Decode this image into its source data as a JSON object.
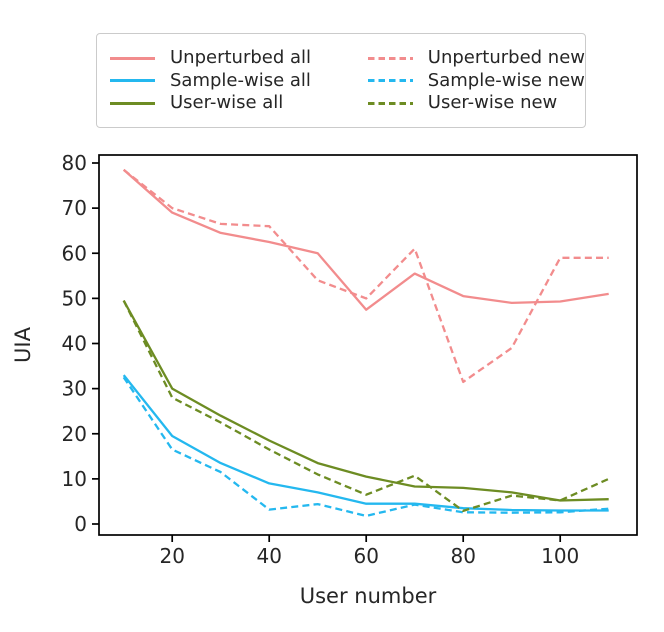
{
  "figure": {
    "background": "#ffffff",
    "text_color": "#262626"
  },
  "chart_data": {
    "type": "line",
    "title": "",
    "xlabel": "User number",
    "ylabel": "UIA",
    "x": [
      10,
      20,
      30,
      40,
      50,
      60,
      70,
      80,
      90,
      100,
      110
    ],
    "x_ticks": [
      20,
      40,
      60,
      80,
      100
    ],
    "y_ticks": [
      0,
      10,
      20,
      30,
      40,
      50,
      60,
      70,
      80
    ],
    "xlim": [
      4.9,
      115.8
    ],
    "ylim": [
      -2.4,
      81.8
    ],
    "grid": false,
    "legend_position": "top, outside plot, 2 columns",
    "series": [
      {
        "label": "Unperturbed all",
        "color": "#f28c8d",
        "style": "solid",
        "values": [
          78.5,
          69,
          64.5,
          62.5,
          60,
          47.5,
          55.5,
          50.5,
          49,
          49.3,
          51
        ]
      },
      {
        "label": "Sample-wise all",
        "color": "#24b8ef",
        "style": "solid",
        "values": [
          33,
          19.5,
          13.5,
          9,
          7,
          4.5,
          4.5,
          3.5,
          3.1,
          3,
          3
        ]
      },
      {
        "label": "User-wise all",
        "color": "#6d8c23",
        "style": "solid",
        "values": [
          49.5,
          30,
          24,
          18.5,
          13.5,
          10.5,
          8.3,
          8,
          7,
          5.2,
          5.5
        ]
      },
      {
        "label": "Unperturbed new",
        "color": "#f28c8d",
        "style": "dashed",
        "values": [
          78.5,
          70,
          66.5,
          66,
          54,
          50,
          61,
          31.5,
          39,
          59,
          59
        ]
      },
      {
        "label": "Sample-wise new",
        "color": "#24b8ef",
        "style": "dashed",
        "values": [
          32.5,
          16.5,
          11.5,
          3.2,
          4.4,
          1.8,
          4.3,
          2.6,
          2.5,
          2.6,
          3.4
        ]
      },
      {
        "label": "User-wise new",
        "color": "#6d8c23",
        "style": "dashed",
        "values": [
          49.5,
          28,
          22.5,
          16.5,
          11,
          6.5,
          10.7,
          2.9,
          6.3,
          5.2,
          10
        ]
      }
    ]
  }
}
